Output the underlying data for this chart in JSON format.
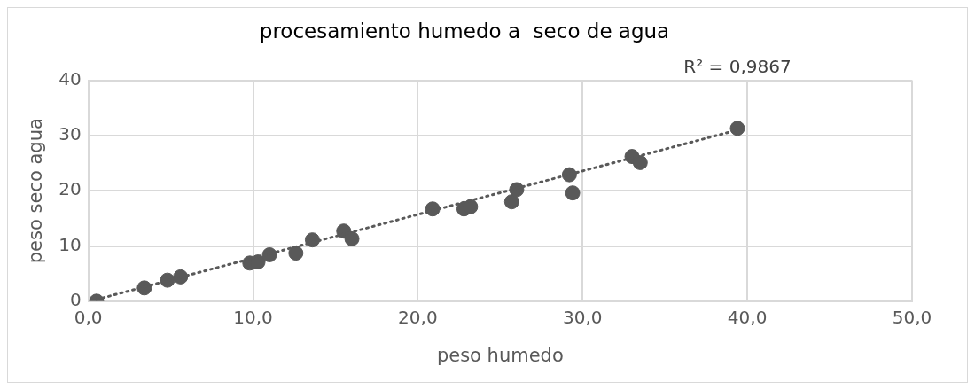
{
  "chart_data": {
    "type": "scatter",
    "title": "procesamiento humedo a  seco de agua",
    "xlabel": "peso humedo",
    "ylabel": "peso seco agua",
    "annotations": [
      "R² = 0,9867"
    ],
    "series": [
      {
        "type": "scatter",
        "color": "#595959",
        "marker": "circle",
        "x": [
          0.5,
          3.4,
          4.8,
          5.6,
          9.8,
          10.3,
          11.0,
          12.6,
          13.6,
          15.5,
          16.0,
          20.9,
          22.8,
          23.2,
          25.7,
          26.0,
          29.2,
          29.4,
          33.0,
          33.5,
          39.4
        ],
        "values": [
          0,
          2.4,
          3.8,
          4.4,
          6.9,
          7.1,
          8.4,
          8.7,
          11.1,
          12.7,
          11.3,
          16.7,
          16.7,
          17.1,
          18.0,
          20.2,
          22.9,
          19.6,
          26.2,
          25.1,
          31.3
        ]
      },
      {
        "type": "line",
        "color": "#595959",
        "line_style": "dotted",
        "marker": "none",
        "x": [
          0.5,
          39.4
        ],
        "values": [
          0.3,
          31.0
        ]
      }
    ],
    "xlim": [
      0,
      50
    ],
    "xticks": [
      {
        "value": 0,
        "label": "0,0"
      },
      {
        "value": 10,
        "label": "10,0"
      },
      {
        "value": 20,
        "label": "20,0"
      },
      {
        "value": 30,
        "label": "30,0"
      },
      {
        "value": 40,
        "label": "40,0"
      },
      {
        "value": 50,
        "label": "50,0"
      }
    ],
    "ylim": [
      0,
      40
    ],
    "yticks": [
      0,
      10,
      20,
      30,
      40
    ],
    "grid": true,
    "legend": false
  }
}
